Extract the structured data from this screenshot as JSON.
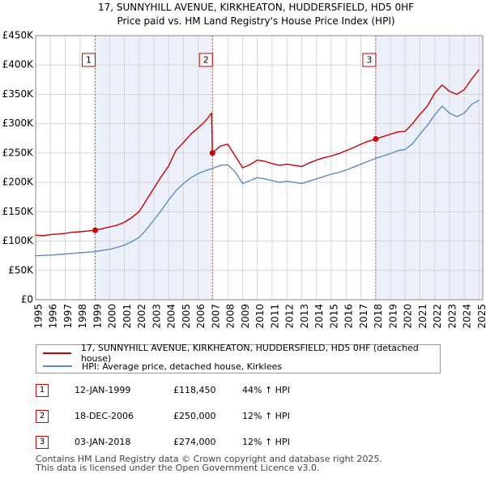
{
  "title_line1": "17, SUNNYHILL AVENUE, KIRKHEATON, HUDDERSFIELD, HD5 0HF",
  "title_line2": "Price paid vs. HM Land Registry's House Price Index (HPI)",
  "chart_data": {
    "type": "line",
    "title": "17, SUNNYHILL AVENUE, KIRKHEATON, HUDDERSFIELD, HD5 0HF — Price paid vs. HM Land Registry's House Price Index (HPI)",
    "xlim": [
      1995,
      2025.25
    ],
    "ylim": [
      0,
      450000
    ],
    "x_ticks": [
      "1995",
      "1996",
      "1997",
      "1998",
      "1999",
      "2000",
      "2001",
      "2002",
      "2003",
      "2004",
      "2005",
      "2006",
      "2007",
      "2008",
      "2009",
      "2010",
      "2011",
      "2012",
      "2013",
      "2014",
      "2015",
      "2016",
      "2017",
      "2018",
      "2019",
      "2020",
      "2021",
      "2022",
      "2023",
      "2024",
      "2025"
    ],
    "y_ticks": [
      {
        "value": 0,
        "label": "£0"
      },
      {
        "value": 50000,
        "label": "£50K"
      },
      {
        "value": 100000,
        "label": "£100K"
      },
      {
        "value": 150000,
        "label": "£150K"
      },
      {
        "value": 200000,
        "label": "£200K"
      },
      {
        "value": 250000,
        "label": "£250K"
      },
      {
        "value": 300000,
        "label": "£300K"
      },
      {
        "value": 350000,
        "label": "£350K"
      },
      {
        "value": 400000,
        "label": "£400K"
      },
      {
        "value": 450000,
        "label": "£450K"
      }
    ],
    "grid": true,
    "shaded_spans": [
      [
        1999.03,
        2006.96
      ],
      [
        2018.01,
        2025.25
      ]
    ],
    "series": [
      {
        "name": "17, SUNNYHILL AVENUE, KIRKHEATON, HUDDERSFIELD, HD5 0HF (detached house)",
        "color": "#cc0000",
        "x": [
          1995,
          1995.5,
          1996,
          1996.5,
          1997,
          1997.5,
          1998,
          1998.5,
          1999.03,
          1999.5,
          2000,
          2000.5,
          2001,
          2001.5,
          2002,
          2002.5,
          2003,
          2003.5,
          2004,
          2004.5,
          2005,
          2005.5,
          2006,
          2006.5,
          2006.9,
          2006.96,
          2007.5,
          2008,
          2008.5,
          2009,
          2009.5,
          2010,
          2010.5,
          2011,
          2011.5,
          2012,
          2012.5,
          2013,
          2013.5,
          2014,
          2014.5,
          2015,
          2015.5,
          2016,
          2016.5,
          2017,
          2017.5,
          2018.01,
          2018.5,
          2019,
          2019.5,
          2020,
          2020.5,
          2021,
          2021.5,
          2022,
          2022.5,
          2023,
          2023.5,
          2024,
          2024.5,
          2025
        ],
        "values": [
          110000,
          109000,
          111000,
          112000,
          113000,
          115000,
          116000,
          117000,
          118450,
          121000,
          124000,
          127000,
          132000,
          140000,
          150000,
          170000,
          190000,
          210000,
          228000,
          255000,
          268000,
          282000,
          293000,
          305000,
          318000,
          250000,
          262000,
          265000,
          245000,
          225000,
          230000,
          238000,
          236000,
          232000,
          229000,
          231000,
          229000,
          227000,
          233000,
          238000,
          242000,
          245000,
          249000,
          254000,
          259000,
          265000,
          270000,
          274000,
          278000,
          282000,
          286000,
          287000,
          300000,
          316000,
          330000,
          352000,
          366000,
          355000,
          350000,
          358000,
          376000,
          392000
        ]
      },
      {
        "name": "HPI: Average price, detached house, Kirklees",
        "color": "#5b8cc8",
        "x": [
          1995,
          1995.5,
          1996,
          1996.5,
          1997,
          1997.5,
          1998,
          1998.5,
          1999,
          1999.5,
          2000,
          2000.5,
          2001,
          2001.5,
          2002,
          2002.5,
          2003,
          2003.5,
          2004,
          2004.5,
          2005,
          2005.5,
          2006,
          2006.5,
          2007,
          2007.5,
          2008,
          2008.5,
          2009,
          2009.5,
          2010,
          2010.5,
          2011,
          2011.5,
          2012,
          2012.5,
          2013,
          2013.5,
          2014,
          2014.5,
          2015,
          2015.5,
          2016,
          2016.5,
          2017,
          2017.5,
          2018,
          2018.5,
          2019,
          2019.5,
          2020,
          2020.5,
          2021,
          2021.5,
          2022,
          2022.5,
          2023,
          2023.5,
          2024,
          2024.5,
          2025
        ],
        "values": [
          75000,
          75500,
          76000,
          77000,
          78000,
          79000,
          80000,
          81000,
          82000,
          84000,
          86000,
          89000,
          93000,
          99000,
          106000,
          120000,
          136000,
          152000,
          170000,
          186000,
          198000,
          208000,
          215000,
          220000,
          224000,
          229000,
          230000,
          218000,
          198000,
          203000,
          208000,
          206000,
          203000,
          200000,
          202000,
          200000,
          198000,
          202000,
          206000,
          210000,
          214000,
          217000,
          221000,
          226000,
          231000,
          236000,
          241000,
          245000,
          249000,
          254000,
          256000,
          266000,
          282000,
          297000,
          315000,
          330000,
          318000,
          312000,
          318000,
          333000,
          340000
        ]
      }
    ],
    "sales": [
      {
        "marker": "1",
        "x": 1999.03,
        "y": 118450
      },
      {
        "marker": "2",
        "x": 2006.96,
        "y": 250000
      },
      {
        "marker": "3",
        "x": 2018.01,
        "y": 274000
      }
    ]
  },
  "legend": {
    "items": [
      {
        "label": "17, SUNNYHILL AVENUE, KIRKHEATON, HUDDERSFIELD, HD5 0HF (detached house)",
        "color": "#cc0000"
      },
      {
        "label": "HPI: Average price, detached house, Kirklees",
        "color": "#5b8cc8"
      }
    ]
  },
  "sales_table": [
    {
      "num": "1",
      "date": "12-JAN-1999",
      "price": "£118,450",
      "hpi": "44% ↑ HPI"
    },
    {
      "num": "2",
      "date": "18-DEC-2006",
      "price": "£250,000",
      "hpi": "12% ↑ HPI"
    },
    {
      "num": "3",
      "date": "03-JAN-2018",
      "price": "£274,000",
      "hpi": "12% ↑ HPI"
    }
  ],
  "footer": {
    "line1": "Contains HM Land Registry data © Crown copyright and database right 2025.",
    "line2": "This data is licensed under the Open Government Licence v3.0."
  }
}
